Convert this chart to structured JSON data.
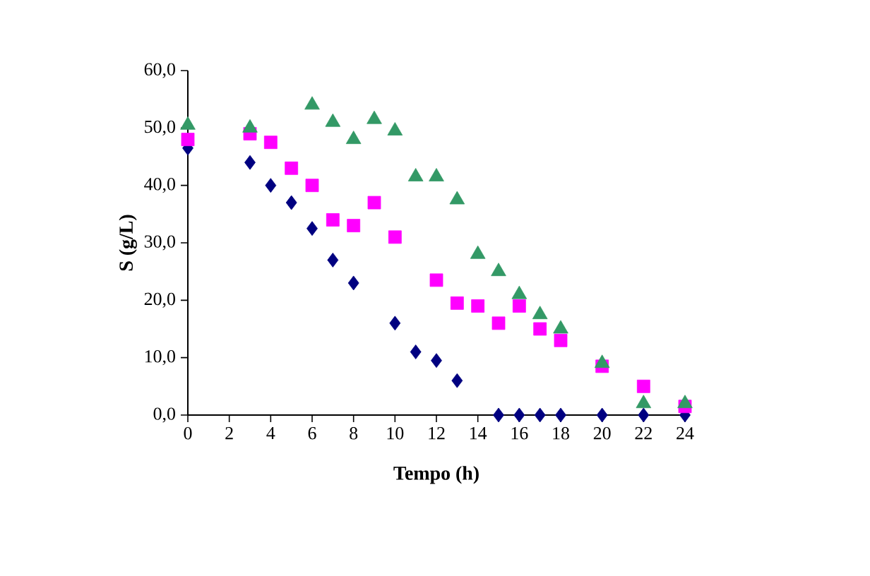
{
  "chart_data": {
    "type": "scatter",
    "xlabel": "Tempo (h)",
    "ylabel": "S (g/L)",
    "xlim": [
      0,
      24
    ],
    "xticks": [
      0,
      2,
      4,
      6,
      8,
      10,
      12,
      14,
      16,
      18,
      20,
      22,
      24
    ],
    "ylim": [
      0,
      60
    ],
    "yticks": [
      {
        "value": 0,
        "label": "0,0"
      },
      {
        "value": 10,
        "label": "10,0"
      },
      {
        "value": 20,
        "label": "20,0"
      },
      {
        "value": 30,
        "label": "30,0"
      },
      {
        "value": 40,
        "label": "40,0"
      },
      {
        "value": 50,
        "label": "50,0"
      },
      {
        "value": 60,
        "label": "60,0"
      }
    ],
    "series": [
      {
        "color": "#000080",
        "marker": "diamond",
        "x": [
          0,
          3,
          4,
          5,
          6,
          7,
          8,
          10,
          11,
          12,
          13,
          15,
          16,
          17,
          18,
          20,
          22,
          24
        ],
        "values": [
          46.5,
          44,
          40,
          37,
          32.5,
          27,
          23,
          16,
          11,
          9.5,
          6,
          0,
          0,
          0,
          0,
          0,
          0,
          0
        ]
      },
      {
        "color": "#ff00ff",
        "marker": "square",
        "x": [
          0,
          3,
          4,
          5,
          6,
          7,
          8,
          9,
          10,
          12,
          13,
          14,
          15,
          16,
          17,
          18,
          20,
          22,
          24
        ],
        "values": [
          48,
          49,
          47.5,
          43,
          40,
          34,
          33,
          37,
          31,
          23.5,
          19.5,
          19,
          16,
          19,
          15,
          13,
          8.5,
          5,
          1.5
        ]
      },
      {
        "color": "#339966",
        "marker": "triangle",
        "x": [
          0,
          3,
          6,
          7,
          8,
          9,
          10,
          11,
          12,
          13,
          14,
          15,
          16,
          17,
          18,
          20,
          22,
          24
        ],
        "values": [
          50.5,
          50,
          54,
          51,
          48,
          51.5,
          49.5,
          41.5,
          41.5,
          37.5,
          28,
          25,
          21,
          17.5,
          15,
          9,
          2,
          2
        ]
      }
    ]
  }
}
